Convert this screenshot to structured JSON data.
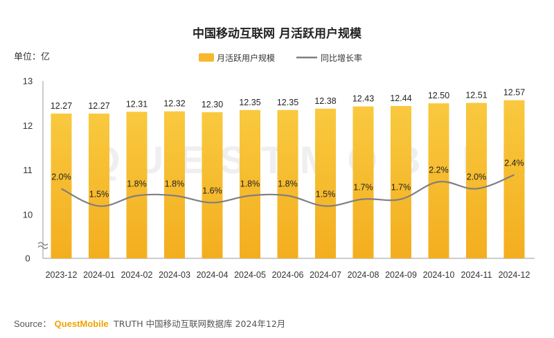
{
  "chart_data": {
    "type": "bar",
    "title": "中国移动互联网 月活跃用户规模",
    "unit_label": "单位：亿",
    "categories": [
      "2023-12",
      "2024-01",
      "2024-02",
      "2024-03",
      "2024-04",
      "2024-05",
      "2024-06",
      "2024-07",
      "2024-08",
      "2024-09",
      "2024-10",
      "2024-11",
      "2024-12"
    ],
    "series": [
      {
        "name": "月活跃用户规模",
        "type": "bar",
        "color": "#f5b82e",
        "values": [
          12.27,
          12.27,
          12.31,
          12.32,
          12.3,
          12.35,
          12.35,
          12.38,
          12.43,
          12.44,
          12.5,
          12.51,
          12.57
        ],
        "labels": [
          "12.27",
          "12.27",
          "12.31",
          "12.32",
          "12.30",
          "12.35",
          "12.35",
          "12.38",
          "12.43",
          "12.44",
          "12.50",
          "12.51",
          "12.57"
        ]
      },
      {
        "name": "同比增长率",
        "type": "line",
        "color": "#7f7f7f",
        "values": [
          2.0,
          1.5,
          1.8,
          1.8,
          1.6,
          1.8,
          1.8,
          1.5,
          1.7,
          1.7,
          2.2,
          2.0,
          2.4
        ],
        "labels": [
          "2.0%",
          "1.5%",
          "1.8%",
          "1.8%",
          "1.6%",
          "1.8%",
          "1.8%",
          "1.5%",
          "1.7%",
          "1.7%",
          "2.2%",
          "2.0%",
          "2.4%"
        ]
      }
    ],
    "y_ticks": [
      "13",
      "12",
      "11",
      "10",
      "0"
    ],
    "y_axis_break": true,
    "grid": false,
    "legend_position": "top-center"
  },
  "source": {
    "prefix": "Source：",
    "brand": "QuestMobile",
    "rest": "TRUTH 中国移动互联网数据库 2024年12月"
  },
  "watermark": "QUESTMOBILE"
}
